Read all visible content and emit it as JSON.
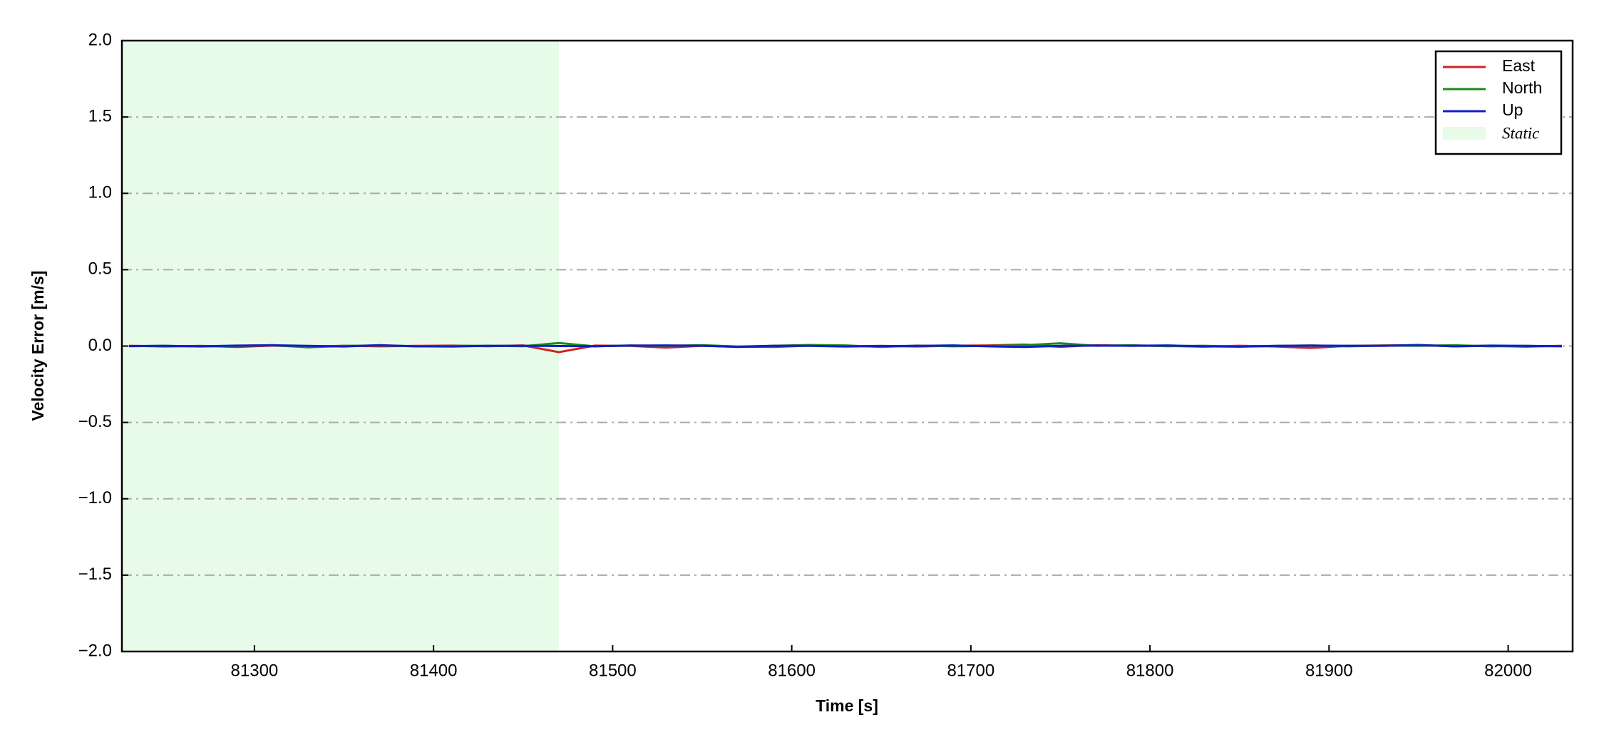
{
  "chart_data": {
    "type": "line",
    "xlabel": "Time [s]",
    "ylabel": "Velocity Error [m/s]",
    "xlim": [
      81226,
      82036
    ],
    "ylim": [
      -2.0,
      2.0
    ],
    "xticks": [
      81300,
      81400,
      81500,
      81600,
      81700,
      81800,
      81900,
      82000
    ],
    "yticks": [
      {
        "value": -2.0,
        "label": "−2.0"
      },
      {
        "value": -1.5,
        "label": "−1.5"
      },
      {
        "value": -1.0,
        "label": "−1.0"
      },
      {
        "value": -0.5,
        "label": "−0.5"
      },
      {
        "value": 0.0,
        "label": "0.0"
      },
      0.5,
      {
        "value": 1.0,
        "label": "1.0"
      },
      1.5,
      {
        "value": 2.0,
        "label": "2.0"
      }
    ],
    "grid": true,
    "legend": "upper right",
    "spans": [
      {
        "name": "Static",
        "color": "#e8fbe8",
        "x": [
          81226,
          81470
        ]
      }
    ],
    "x": [
      81230,
      81250,
      81270,
      81290,
      81310,
      81330,
      81350,
      81370,
      81390,
      81410,
      81430,
      81450,
      81470,
      81490,
      81510,
      81530,
      81550,
      81570,
      81590,
      81610,
      81630,
      81650,
      81670,
      81690,
      81710,
      81730,
      81750,
      81770,
      81790,
      81810,
      81830,
      81850,
      81870,
      81890,
      81910,
      81930,
      81950,
      81970,
      81990,
      82010,
      82030
    ],
    "series": [
      {
        "name": "East",
        "color": "#d62020",
        "values": [
          0.002,
          -0.003,
          0.001,
          -0.006,
          0.003,
          -0.004,
          0.002,
          -0.002,
          0.001,
          0.003,
          -0.001,
          0.004,
          -0.04,
          0.003,
          0.001,
          -0.01,
          0.002,
          -0.004,
          -0.006,
          0.003,
          -0.002,
          0.001,
          -0.003,
          0.002,
          0.004,
          0.01,
          -0.005,
          0.006,
          0.002,
          0.001,
          -0.004,
          0.002,
          -0.003,
          -0.012,
          0.001,
          0.004,
          0.006,
          -0.002,
          0.001,
          -0.004,
          0.002
        ]
      },
      {
        "name": "North",
        "color": "#1a8a1a",
        "values": [
          -0.001,
          0.002,
          -0.003,
          0.001,
          0.006,
          -0.008,
          0.001,
          0.004,
          -0.002,
          0.001,
          0.002,
          -0.001,
          0.02,
          -0.002,
          0.004,
          0.001,
          0.006,
          -0.003,
          0.002,
          0.007,
          0.004,
          -0.006,
          0.003,
          -0.002,
          0.001,
          0.006,
          0.018,
          0.002,
          0.005,
          -0.001,
          0.002,
          -0.003,
          0.001,
          0.004,
          -0.002,
          0.003,
          0.002,
          0.005,
          -0.002,
          0.001,
          -0.001
        ]
      },
      {
        "name": "Up",
        "color": "#1020c8",
        "values": [
          0.0,
          0.001,
          -0.002,
          0.003,
          0.005,
          0.001,
          -0.003,
          0.006,
          -0.002,
          -0.003,
          0.001,
          0.002,
          0.0,
          -0.001,
          0.003,
          0.004,
          0.002,
          -0.006,
          0.002,
          0.001,
          -0.003,
          0.0,
          0.001,
          0.004,
          -0.002,
          -0.006,
          0.001,
          0.003,
          0.002,
          0.004,
          -0.002,
          -0.004,
          0.001,
          0.003,
          0.002,
          0.001,
          0.007,
          -0.002,
          0.003,
          0.001,
          -0.001
        ]
      }
    ]
  }
}
